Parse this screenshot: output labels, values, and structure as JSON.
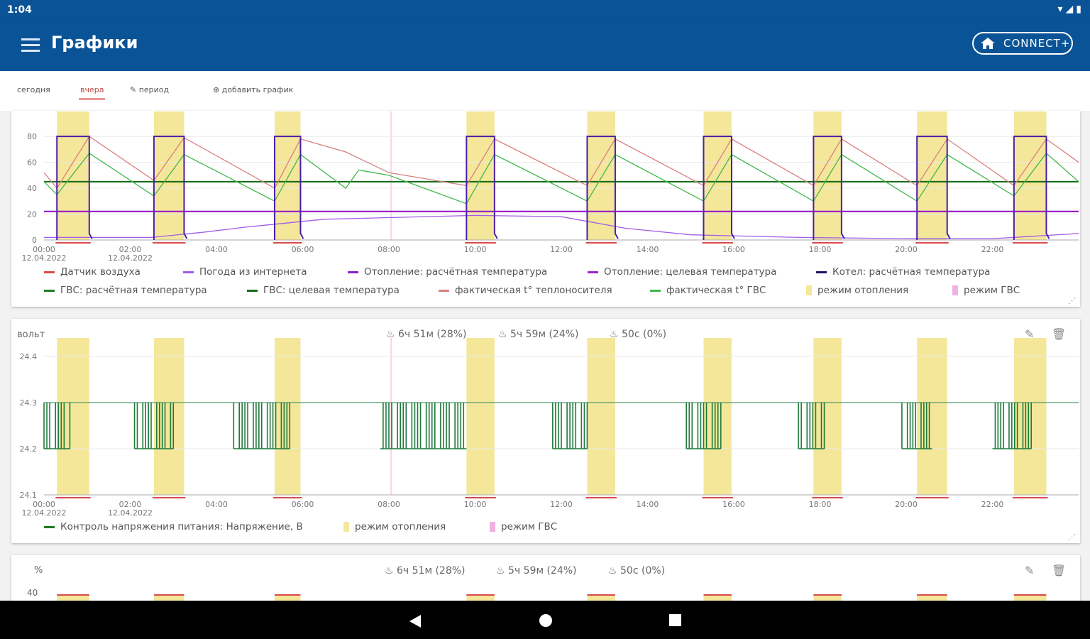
{
  "status": {
    "time": "1:04"
  },
  "appbar": {
    "title": "Графики",
    "connect_label": "CONNECT+"
  },
  "tabs": [
    {
      "label": "сегодня"
    },
    {
      "label": "вчера"
    },
    {
      "label": "период"
    },
    {
      "label": "добавить график"
    }
  ],
  "colors": {
    "primary": "#0a5396",
    "heating_band": "#f4e79a",
    "dhw_band": "#f0b0e0"
  },
  "cards": [
    {
      "unit": "",
      "legend": [
        {
          "label": "Датчик воздуха",
          "color": "#d94a4a",
          "kind": "line"
        },
        {
          "label": "Погода из интернета",
          "color": "#a05ce8",
          "kind": "line"
        },
        {
          "label": "Отопление: расчётная температура",
          "color": "#8a1fc8",
          "kind": "line"
        },
        {
          "label": "Отопление: целевая температура",
          "color": "#9c22c8",
          "kind": "line"
        },
        {
          "label": "Котел: расчётная температура",
          "color": "#1c1466",
          "kind": "line"
        },
        {
          "label": "ГВС: расчётная температура",
          "color": "#1f7a1f",
          "kind": "line"
        },
        {
          "label": "ГВС: целевая температура",
          "color": "#166a16",
          "kind": "line"
        },
        {
          "label": "фактическая t° теплоносителя",
          "color": "#d98080",
          "kind": "line"
        },
        {
          "label": "фактическая t° ГВС",
          "color": "#3fb84a",
          "kind": "line"
        },
        {
          "label": "режим отопления",
          "color": "#f4e79a",
          "kind": "box"
        },
        {
          "label": "режим ГВС",
          "color": "#f0b0e0",
          "kind": "box"
        }
      ]
    },
    {
      "unit": "вольт",
      "stats": [
        "6ч 51м (28%)",
        "5ч 59м (24%)",
        "50с (0%)"
      ],
      "legend": [
        {
          "label": "Контроль напряжения питания: Напряжение, В",
          "color": "#1f7a1f",
          "kind": "line"
        },
        {
          "label": "режим отопления",
          "color": "#f4e79a",
          "kind": "box"
        },
        {
          "label": "режим ГВС",
          "color": "#f0b0e0",
          "kind": "box"
        }
      ]
    },
    {
      "unit": "%",
      "stats": [
        "6ч 51м (28%)",
        "5ч 59м (24%)",
        "50с (0%)"
      ]
    }
  ],
  "chart_data": [
    {
      "type": "line",
      "x_ticks": [
        "00:00",
        "02:00",
        "04:00",
        "06:00",
        "08:00",
        "10:00",
        "12:00",
        "14:00",
        "16:00",
        "18:00",
        "20:00",
        "22:00"
      ],
      "x_dates": [
        "12.04.2022",
        "12.04.2022"
      ],
      "y_ticks": [
        "80",
        "60",
        "40",
        "20",
        "0"
      ],
      "ylim": [
        0,
        85
      ],
      "heating_periods": [
        [
          0.3,
          1.05
        ],
        [
          2.55,
          3.25
        ],
        [
          5.35,
          5.95
        ],
        [
          9.8,
          10.45
        ],
        [
          12.6,
          13.25
        ],
        [
          15.3,
          15.95
        ],
        [
          17.85,
          18.5
        ],
        [
          20.25,
          20.95
        ],
        [
          22.5,
          23.25
        ]
      ],
      "dhw_markers": [
        8.05
      ],
      "series": [
        {
          "name": "ГВС: целевая температура",
          "x": [
            0,
            24
          ],
          "values": [
            45,
            45
          ]
        },
        {
          "name": "Отопление: целевая температура",
          "x": [
            0,
            24
          ],
          "values": [
            22,
            22
          ]
        },
        {
          "name": "Погода из интернета",
          "x": [
            0,
            2.5,
            3.7,
            4.7,
            6.5,
            10,
            12,
            13.5,
            15,
            17.5,
            20,
            22,
            24
          ],
          "values": [
            2,
            2,
            6,
            10,
            16,
            19,
            18,
            9,
            4,
            2,
            1,
            1,
            5
          ]
        },
        {
          "name": "фактическая t° теплоносителя",
          "x": [
            0,
            0.3,
            1.05,
            2.55,
            3.25,
            5.35,
            5.95,
            7.0,
            8.0,
            9.8,
            10.45,
            12.6,
            13.25,
            15.3,
            15.95,
            17.85,
            18.5,
            20.25,
            20.95,
            22.5,
            23.25,
            24
          ],
          "values": [
            52,
            40,
            80,
            46,
            79,
            40,
            78,
            68,
            52,
            42,
            78,
            42,
            78,
            42,
            78,
            42,
            78,
            42,
            78,
            42,
            78,
            60
          ]
        },
        {
          "name": "фактическая t° ГВС",
          "x": [
            0,
            0.3,
            1.05,
            2.55,
            3.25,
            5.35,
            5.95,
            7.0,
            7.3,
            8.0,
            9.8,
            10.45,
            12.6,
            13.25,
            15.3,
            15.95,
            17.85,
            18.5,
            20.25,
            20.95,
            22.5,
            23.25,
            24
          ],
          "values": [
            45,
            35,
            67,
            34,
            66,
            30,
            66,
            40,
            54,
            50,
            28,
            66,
            30,
            66,
            30,
            66,
            30,
            66,
            30,
            66,
            34,
            67,
            45
          ]
        },
        {
          "name": "Котел: расчётная температура",
          "x": [
            0.3,
            1.05,
            2.55,
            3.25,
            5.35,
            5.95,
            9.8,
            10.45,
            12.6,
            13.25,
            15.3,
            15.95,
            17.85,
            18.5,
            20.25,
            20.95,
            22.5,
            23.25
          ],
          "values": [
            80,
            80,
            80,
            80,
            80,
            80,
            80,
            80,
            80,
            80,
            80,
            80,
            80,
            80,
            80,
            80,
            80,
            80
          ]
        }
      ]
    },
    {
      "type": "line",
      "x_ticks": [
        "00:00",
        "02:00",
        "04:00",
        "06:00",
        "08:00",
        "10:00",
        "12:00",
        "14:00",
        "16:00",
        "18:00",
        "20:00",
        "22:00"
      ],
      "x_dates": [
        "12.04.2022",
        "12.04.2022"
      ],
      "y_ticks": [
        "24.4",
        "24.3",
        "24.2",
        "24.1"
      ],
      "ylim": [
        24.1,
        24.4
      ],
      "heating_periods": [
        [
          0.3,
          1.05
        ],
        [
          2.55,
          3.25
        ],
        [
          5.35,
          5.95
        ],
        [
          9.8,
          10.45
        ],
        [
          12.6,
          13.25
        ],
        [
          15.3,
          15.95
        ],
        [
          17.85,
          18.5
        ],
        [
          20.25,
          20.95
        ],
        [
          22.5,
          23.25
        ]
      ],
      "dhw_markers": [
        8.05
      ],
      "series": [
        {
          "name": "Контроль напряжения питания: Напряжение, В",
          "base": 24.3,
          "low": 24.2,
          "switch_bands": [
            [
              0,
              0.6
            ],
            [
              2.1,
              3.0
            ],
            [
              4.4,
              5.7
            ],
            [
              7.8,
              9.8
            ],
            [
              11.8,
              12.6
            ],
            [
              14.9,
              15.7
            ],
            [
              17.5,
              18.1
            ],
            [
              19.9,
              20.6
            ],
            [
              22.0,
              22.9
            ]
          ]
        }
      ]
    }
  ]
}
